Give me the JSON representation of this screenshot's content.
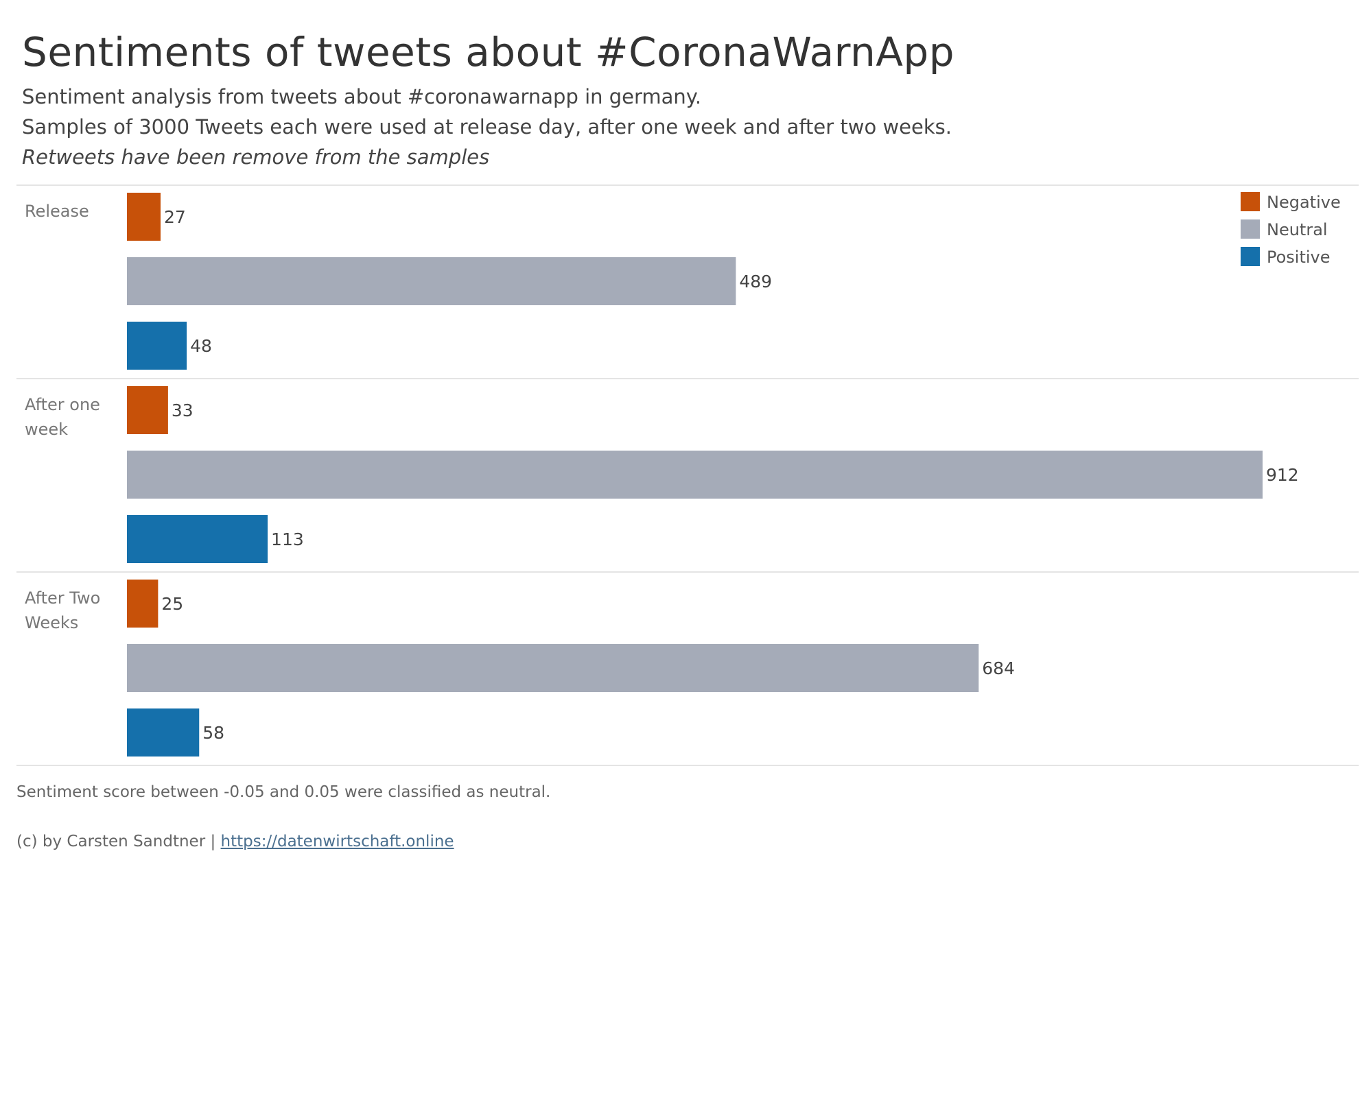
{
  "title": "Sentiments of tweets about #CoronaWarnApp",
  "subtitle_lines": [
    "Sentiment analysis from tweets about #coronawarnapp in germany.",
    "Samples of 3000 Tweets each were used at release day, after one week and after two weeks.",
    "Retweets have been remove from the samples"
  ],
  "footnote": "Sentiment score between -0.05 and 0.05 were classified as neutral.",
  "credit": {
    "text": "(c) by Carsten Sandtner | ",
    "link": "https://datenwirtschaft.online"
  },
  "colors": {
    "Negative": "#c75109",
    "Neutral": "#a5abb8",
    "Positive": "#1570ab"
  },
  "chart_data": {
    "type": "bar",
    "orientation": "horizontal",
    "categories": [
      "Release",
      "After one week",
      "After Two Weeks"
    ],
    "series": [
      {
        "name": "Negative",
        "values": [
          27,
          33,
          25
        ]
      },
      {
        "name": "Neutral",
        "values": [
          489,
          912,
          684
        ]
      },
      {
        "name": "Positive",
        "values": [
          48,
          113,
          58
        ]
      }
    ],
    "xlim": [
      0,
      912
    ],
    "legend": "top-right",
    "data_labels": true,
    "grid": false
  }
}
